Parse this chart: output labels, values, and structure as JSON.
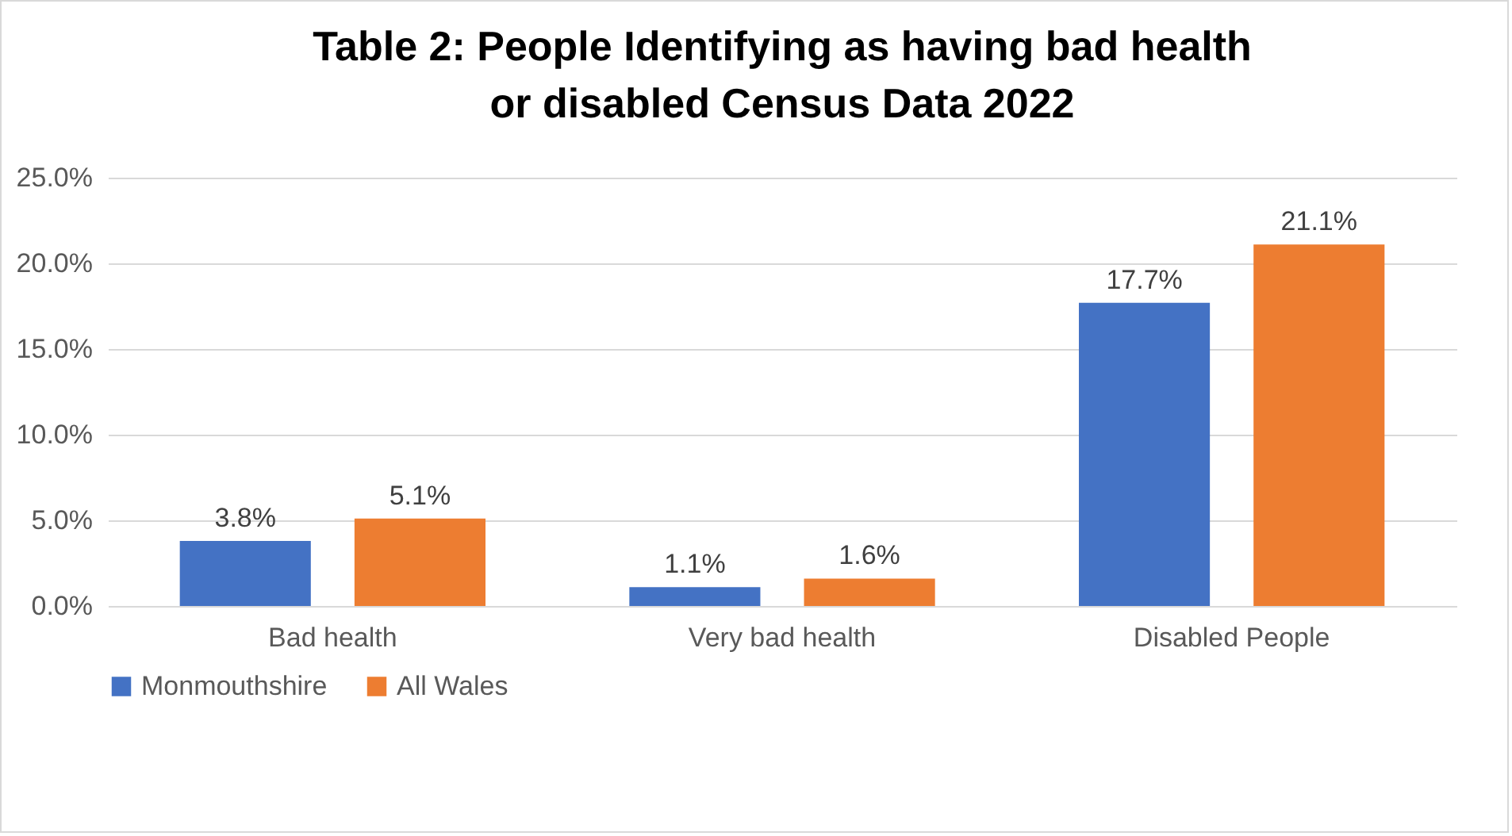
{
  "chart_data": {
    "type": "bar",
    "title": "Table 2: People Identifying as having bad health\nor  disabled Census Data 2022",
    "categories": [
      "Bad health",
      "Very bad health",
      "Disabled People"
    ],
    "series": [
      {
        "name": "Monmouthshire",
        "color": "#4472c4",
        "values": [
          3.8,
          1.1,
          17.7
        ],
        "value_labels": [
          "3.8%",
          "1.1%",
          "17.7%"
        ]
      },
      {
        "name": "All Wales",
        "color": "#ed7d31",
        "values": [
          5.1,
          1.6,
          21.1
        ],
        "value_labels": [
          "5.1%",
          "1.6%",
          "21.1%"
        ]
      }
    ],
    "ylim": [
      0,
      25
    ],
    "yticks": [
      {
        "value": 0,
        "label": "0.0%"
      },
      {
        "value": 5,
        "label": "5.0%"
      },
      {
        "value": 10,
        "label": "10.0%"
      },
      {
        "value": 15,
        "label": "15.0%"
      },
      {
        "value": 20,
        "label": "20.0%"
      },
      {
        "value": 25,
        "label": "25.0%"
      }
    ],
    "grid": "y",
    "legend": "bottom"
  }
}
